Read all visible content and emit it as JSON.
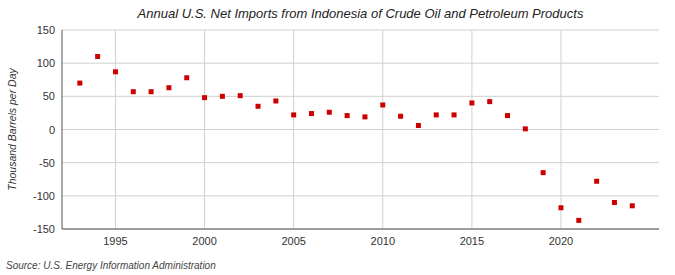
{
  "chart_data": {
    "type": "scatter",
    "title": "Annual U.S. Net Imports from Indonesia of Crude Oil and Petroleum Products",
    "ylabel": "Thousand Barrels per Day",
    "source": "Source: U.S. Energy Information Administration",
    "x": [
      1993,
      1994,
      1995,
      1996,
      1997,
      1998,
      1999,
      2000,
      2001,
      2002,
      2003,
      2004,
      2005,
      2006,
      2007,
      2008,
      2009,
      2010,
      2011,
      2012,
      2013,
      2014,
      2015,
      2016,
      2017,
      2018,
      2019,
      2020,
      2021,
      2022,
      2023,
      2024
    ],
    "values": [
      70,
      110,
      87,
      57,
      57,
      63,
      78,
      48,
      50,
      51,
      35,
      43,
      22,
      24,
      26,
      21,
      19,
      37,
      20,
      6,
      22,
      22,
      40,
      42,
      21,
      1,
      -65,
      -118,
      -137,
      -78,
      -110,
      -115
    ],
    "color": "#cc0000",
    "marker": "square",
    "xlim": [
      1992,
      2025.5
    ],
    "ylim": [
      -150,
      150
    ],
    "xticks": [
      1995,
      2000,
      2005,
      2010,
      2015,
      2020
    ],
    "yticks": [
      -150,
      -100,
      -50,
      0,
      50,
      100,
      150
    ],
    "grid": true
  }
}
